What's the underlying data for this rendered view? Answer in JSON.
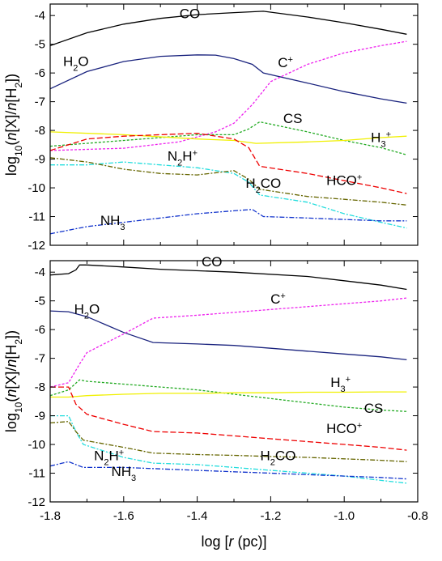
{
  "chart_data": [
    {
      "type": "line",
      "xlim": [
        -1.8,
        -0.8
      ],
      "ylim": [
        -12,
        -3.6
      ],
      "xticks": [
        -1.8,
        -1.6,
        -1.4,
        -1.2,
        -1.0,
        -0.8
      ],
      "yticks": [
        -12,
        -11,
        -10,
        -9,
        -8,
        -7,
        -6,
        -5,
        -4
      ],
      "ylabel": "log10(n[X]/n[H2])",
      "series": [
        {
          "name": "CO",
          "color": "#000000",
          "dash": "",
          "x": [
            -1.8,
            -1.7,
            -1.6,
            -1.5,
            -1.4,
            -1.3,
            -1.22,
            -1.1,
            -1.0,
            -0.9,
            -0.83
          ],
          "y": [
            -5.05,
            -4.6,
            -4.3,
            -4.1,
            -3.97,
            -3.9,
            -3.85,
            -4.05,
            -4.25,
            -4.48,
            -4.65
          ]
        },
        {
          "name": "H2O",
          "color": "#1a237e",
          "dash": "",
          "x": [
            -1.8,
            -1.7,
            -1.6,
            -1.5,
            -1.4,
            -1.35,
            -1.3,
            -1.25,
            -1.22,
            -1.1,
            -1.0,
            -0.9,
            -0.83
          ],
          "y": [
            -6.55,
            -5.95,
            -5.6,
            -5.42,
            -5.37,
            -5.38,
            -5.5,
            -5.7,
            -6.0,
            -6.35,
            -6.65,
            -6.9,
            -7.05
          ]
        },
        {
          "name": "C+",
          "color": "#ee22ee",
          "dash": "3,2",
          "x": [
            -1.8,
            -1.6,
            -1.45,
            -1.35,
            -1.3,
            -1.25,
            -1.2,
            -1.1,
            -1.0,
            -0.9,
            -0.83
          ],
          "y": [
            -8.7,
            -8.62,
            -8.4,
            -8.05,
            -7.75,
            -7.1,
            -6.3,
            -5.7,
            -5.3,
            -5.05,
            -4.9
          ]
        },
        {
          "name": "CS",
          "color": "#22aa22",
          "dash": "3,2",
          "x": [
            -1.8,
            -1.6,
            -1.4,
            -1.3,
            -1.26,
            -1.23,
            -1.1,
            -1.0,
            -0.9,
            -0.83
          ],
          "y": [
            -8.55,
            -8.35,
            -8.15,
            -8.15,
            -7.95,
            -7.7,
            -8.05,
            -8.35,
            -8.6,
            -8.85
          ]
        },
        {
          "name": "H3+",
          "color": "#f0f000",
          "dash": "",
          "x": [
            -1.8,
            -1.6,
            -1.4,
            -1.3,
            -1.24,
            -1.1,
            -1.0,
            -0.9,
            -0.83
          ],
          "y": [
            -8.05,
            -8.15,
            -8.3,
            -8.35,
            -8.45,
            -8.4,
            -8.35,
            -8.25,
            -8.2
          ]
        },
        {
          "name": "HCO+",
          "color": "#ee0000",
          "dash": "7,3",
          "x": [
            -1.8,
            -1.7,
            -1.6,
            -1.5,
            -1.4,
            -1.3,
            -1.26,
            -1.23,
            -1.1,
            -1.0,
            -0.9,
            -0.83
          ],
          "y": [
            -8.7,
            -8.3,
            -8.2,
            -8.15,
            -8.1,
            -8.3,
            -8.6,
            -9.25,
            -9.5,
            -9.75,
            -10.0,
            -10.2
          ]
        },
        {
          "name": "N2H+",
          "color": "#22dddd",
          "dash": "6,2,2,2",
          "x": [
            -1.8,
            -1.7,
            -1.6,
            -1.5,
            -1.4,
            -1.3,
            -1.26,
            -1.23,
            -1.1,
            -1.0,
            -0.9,
            -0.83
          ],
          "y": [
            -9.2,
            -9.2,
            -9.1,
            -9.2,
            -9.3,
            -9.5,
            -9.8,
            -10.25,
            -10.5,
            -10.9,
            -11.2,
            -11.4
          ]
        },
        {
          "name": "H2CO",
          "color": "#666600",
          "dash": "6,2,2,2",
          "x": [
            -1.8,
            -1.7,
            -1.6,
            -1.5,
            -1.4,
            -1.3,
            -1.26,
            -1.23,
            -1.1,
            -1.0,
            -0.9,
            -0.83
          ],
          "y": [
            -8.95,
            -9.1,
            -9.35,
            -9.5,
            -9.55,
            -9.4,
            -9.7,
            -10.05,
            -10.3,
            -10.4,
            -10.5,
            -10.6
          ]
        },
        {
          "name": "NH3",
          "color": "#1133cc",
          "dash": "6,2,2,2",
          "x": [
            -1.8,
            -1.7,
            -1.6,
            -1.5,
            -1.4,
            -1.3,
            -1.25,
            -1.22,
            -1.1,
            -1.0,
            -0.9,
            -0.83
          ],
          "y": [
            -11.6,
            -11.35,
            -11.2,
            -11.05,
            -10.9,
            -10.8,
            -10.75,
            -11.0,
            -11.05,
            -11.1,
            -11.15,
            -11.15
          ]
        }
      ],
      "labels": [
        {
          "parts": [
            {
              "t": "CO"
            }
          ],
          "x": -1.42,
          "y": -4.1
        },
        {
          "parts": [
            {
              "t": "H"
            },
            {
              "t": "2",
              "sub": true
            },
            {
              "t": "O"
            }
          ],
          "x": -1.73,
          "y": -5.75
        },
        {
          "parts": [
            {
              "t": "C"
            },
            {
              "t": "+",
              "sup": true
            }
          ],
          "x": -1.16,
          "y": -5.8
        },
        {
          "parts": [
            {
              "t": "CS"
            }
          ],
          "x": -1.14,
          "y": -7.75
        },
        {
          "parts": [
            {
              "t": "H"
            },
            {
              "t": "3",
              "sub": true
            },
            {
              "t": "+",
              "sup": true
            }
          ],
          "x": -0.9,
          "y": -8.4
        },
        {
          "parts": [
            {
              "t": "N"
            },
            {
              "t": "2",
              "sub": true
            },
            {
              "t": "H"
            },
            {
              "t": "+",
              "sup": true
            }
          ],
          "x": -1.44,
          "y": -9.05
        },
        {
          "parts": [
            {
              "t": "H"
            },
            {
              "t": "2",
              "sub": true
            },
            {
              "t": "CO"
            }
          ],
          "x": -1.22,
          "y": -10.0
        },
        {
          "parts": [
            {
              "t": "HCO"
            },
            {
              "t": "+",
              "sup": true
            }
          ],
          "x": -1.0,
          "y": -9.9
        },
        {
          "parts": [
            {
              "t": "NH"
            },
            {
              "t": "3",
              "sub": true
            }
          ],
          "x": -1.63,
          "y": -11.3
        }
      ]
    },
    {
      "type": "line",
      "xlim": [
        -1.8,
        -0.8
      ],
      "ylim": [
        -12,
        -3.6
      ],
      "xticks": [
        -1.8,
        -1.6,
        -1.4,
        -1.2,
        -1.0,
        -0.8
      ],
      "xticklabels": [
        "-1.8",
        "-1.6",
        "-1.4",
        "-1.2",
        "-1.0",
        "-0.8"
      ],
      "yticks": [
        -12,
        -11,
        -10,
        -9,
        -8,
        -7,
        -6,
        -5,
        -4
      ],
      "ylabel": "log10(n[X]/n[H2])",
      "xlabel": "log [r (pc)]",
      "series": [
        {
          "name": "CO",
          "color": "#000000",
          "dash": "",
          "x": [
            -1.8,
            -1.75,
            -1.73,
            -1.72,
            -1.7,
            -1.6,
            -1.5,
            -1.3,
            -1.1,
            -1.0,
            -0.9,
            -0.83
          ],
          "y": [
            -4.1,
            -4.05,
            -3.92,
            -3.75,
            -3.75,
            -3.82,
            -3.9,
            -4.0,
            -4.15,
            -4.3,
            -4.45,
            -4.6
          ]
        },
        {
          "name": "H2O",
          "color": "#1a237e",
          "dash": "",
          "x": [
            -1.8,
            -1.75,
            -1.7,
            -1.6,
            -1.52,
            -1.4,
            -1.3,
            -1.2,
            -1.1,
            -1.0,
            -0.9,
            -0.83
          ],
          "y": [
            -5.35,
            -5.38,
            -5.55,
            -6.1,
            -6.45,
            -6.5,
            -6.55,
            -6.65,
            -6.75,
            -6.85,
            -6.95,
            -7.05
          ]
        },
        {
          "name": "C+",
          "color": "#ee22ee",
          "dash": "3,2",
          "x": [
            -1.8,
            -1.75,
            -1.72,
            -1.7,
            -1.6,
            -1.52,
            -1.4,
            -1.3,
            -1.2,
            -1.1,
            -1.0,
            -0.9,
            -0.83
          ],
          "y": [
            -8.0,
            -7.85,
            -7.2,
            -6.8,
            -6.15,
            -5.6,
            -5.5,
            -5.4,
            -5.3,
            -5.2,
            -5.1,
            -5.0,
            -4.9
          ]
        },
        {
          "name": "CS",
          "color": "#22aa22",
          "dash": "3,2",
          "x": [
            -1.8,
            -1.75,
            -1.72,
            -1.7,
            -1.6,
            -1.5,
            -1.4,
            -1.3,
            -1.2,
            -1.1,
            -1.0,
            -0.9,
            -0.83
          ],
          "y": [
            -8.3,
            -8.1,
            -7.75,
            -7.8,
            -7.9,
            -8.0,
            -8.1,
            -8.25,
            -8.4,
            -8.55,
            -8.7,
            -8.8,
            -8.85
          ]
        },
        {
          "name": "H3+",
          "color": "#f0f000",
          "dash": "",
          "x": [
            -1.8,
            -1.75,
            -1.7,
            -1.6,
            -1.5,
            -1.4,
            -1.3,
            -1.2,
            -1.1,
            -1.0,
            -0.9,
            -0.83
          ],
          "y": [
            -8.35,
            -8.35,
            -8.3,
            -8.25,
            -8.22,
            -8.22,
            -8.2,
            -8.2,
            -8.18,
            -8.18,
            -8.17,
            -8.17
          ]
        },
        {
          "name": "HCO+",
          "color": "#ee0000",
          "dash": "7,3",
          "x": [
            -1.8,
            -1.75,
            -1.73,
            -1.7,
            -1.6,
            -1.52,
            -1.4,
            -1.3,
            -1.2,
            -1.1,
            -1.0,
            -0.9,
            -0.83
          ],
          "y": [
            -8.0,
            -8.0,
            -8.6,
            -8.95,
            -9.3,
            -9.55,
            -9.6,
            -9.7,
            -9.8,
            -9.9,
            -10.0,
            -10.1,
            -10.2
          ]
        },
        {
          "name": "N2H+",
          "color": "#22dddd",
          "dash": "6,2,2,2",
          "x": [
            -1.8,
            -1.75,
            -1.73,
            -1.71,
            -1.6,
            -1.52,
            -1.4,
            -1.3,
            -1.2,
            -1.1,
            -1.0,
            -0.9,
            -0.83
          ],
          "y": [
            -9.0,
            -9.0,
            -9.55,
            -10.0,
            -10.45,
            -10.65,
            -10.7,
            -10.8,
            -10.9,
            -11.0,
            -11.1,
            -11.25,
            -11.35
          ]
        },
        {
          "name": "H2CO",
          "color": "#666600",
          "dash": "6,2,2,2",
          "x": [
            -1.8,
            -1.75,
            -1.73,
            -1.71,
            -1.6,
            -1.52,
            -1.4,
            -1.3,
            -1.2,
            -1.1,
            -1.0,
            -0.9,
            -0.83
          ],
          "y": [
            -9.25,
            -9.2,
            -9.55,
            -9.85,
            -10.1,
            -10.3,
            -10.35,
            -10.38,
            -10.42,
            -10.45,
            -10.5,
            -10.55,
            -10.6
          ]
        },
        {
          "name": "NH3",
          "color": "#1133cc",
          "dash": "6,2,2,2",
          "x": [
            -1.8,
            -1.75,
            -1.73,
            -1.71,
            -1.6,
            -1.5,
            -1.4,
            -1.3,
            -1.2,
            -1.1,
            -1.0,
            -0.9,
            -0.83
          ],
          "y": [
            -10.75,
            -10.6,
            -10.7,
            -10.8,
            -10.8,
            -10.85,
            -10.9,
            -10.95,
            -11.0,
            -11.05,
            -11.1,
            -11.15,
            -11.2
          ]
        }
      ],
      "labels": [
        {
          "parts": [
            {
              "t": "CO"
            }
          ],
          "x": -1.36,
          "y": -3.8
        },
        {
          "parts": [
            {
              "t": "H"
            },
            {
              "t": "2",
              "sub": true
            },
            {
              "t": "O"
            }
          ],
          "x": -1.7,
          "y": -5.45
        },
        {
          "parts": [
            {
              "t": "C"
            },
            {
              "t": "+",
              "sup": true
            }
          ],
          "x": -1.18,
          "y": -5.1
        },
        {
          "parts": [
            {
              "t": "H"
            },
            {
              "t": "3",
              "sub": true
            },
            {
              "t": "+",
              "sup": true
            }
          ],
          "x": -1.01,
          "y": -8.0
        },
        {
          "parts": [
            {
              "t": "CS"
            }
          ],
          "x": -0.92,
          "y": -8.9
        },
        {
          "parts": [
            {
              "t": "HCO"
            },
            {
              "t": "+",
              "sup": true
            }
          ],
          "x": -1.0,
          "y": -9.6
        },
        {
          "parts": [
            {
              "t": "N"
            },
            {
              "t": "2",
              "sub": true
            },
            {
              "t": "H"
            },
            {
              "t": "+",
              "sup": true
            }
          ],
          "x": -1.64,
          "y": -10.55
        },
        {
          "parts": [
            {
              "t": "H"
            },
            {
              "t": "2",
              "sub": true
            },
            {
              "t": "CO"
            }
          ],
          "x": -1.18,
          "y": -10.55
        },
        {
          "parts": [
            {
              "t": "NH"
            },
            {
              "t": "3",
              "sub": true
            }
          ],
          "x": -1.6,
          "y": -11.1
        }
      ]
    }
  ]
}
